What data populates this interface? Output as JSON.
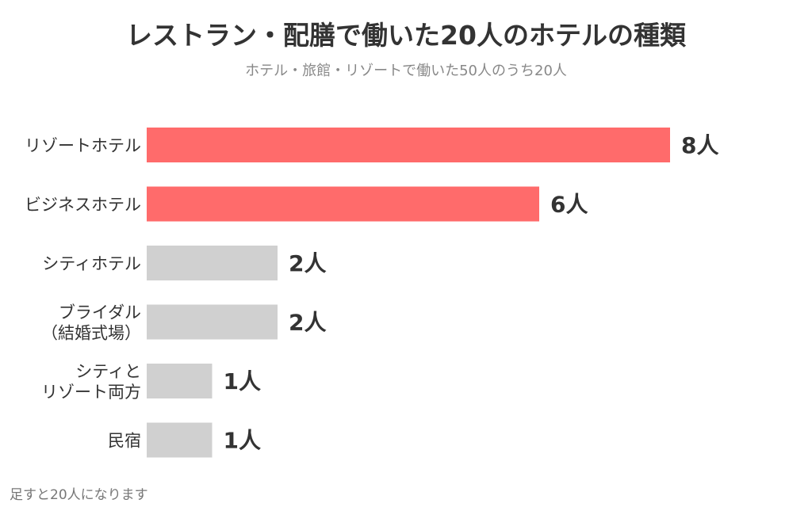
{
  "title": "レストラン・配膳で働いた20人のホテルの種類",
  "subtitle": "ホテル・旅館・リゾートで働いた50人のうち20人",
  "footnote": "足すと20人になります",
  "chart_data": {
    "type": "bar",
    "orientation": "horizontal",
    "categories": [
      [
        "リゾートホテル"
      ],
      [
        "ビジネスホテル"
      ],
      [
        "シティホテル"
      ],
      [
        "ブライダル",
        "（結婚式場）"
      ],
      [
        "シティと",
        "リゾート両方"
      ],
      [
        "民宿"
      ]
    ],
    "values": [
      8,
      6,
      2,
      2,
      1,
      1
    ],
    "value_labels": [
      "8人",
      "6人",
      "2人",
      "2人",
      "1人",
      "1人"
    ],
    "bar_colors": [
      "#ff6b6b",
      "#ff6b6b",
      "#d0d0d0",
      "#d0d0d0",
      "#d0d0d0",
      "#d0d0d0"
    ],
    "xlim": [
      0,
      8
    ],
    "grid": false,
    "legend": "none"
  }
}
